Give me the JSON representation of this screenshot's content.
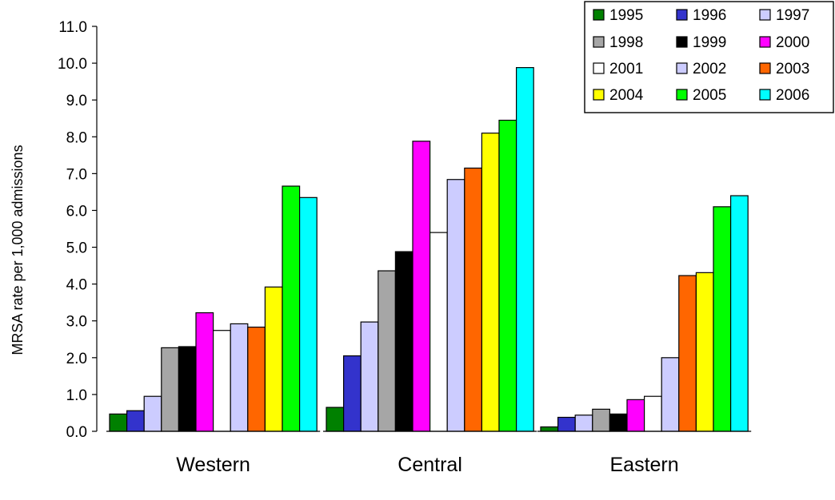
{
  "chart_data": {
    "type": "bar",
    "ylabel": "MRSA rate per 1,000 admissions",
    "ylim": [
      0,
      11
    ],
    "yticks": [
      "0.0",
      "1.0",
      "2.0",
      "3.0",
      "4.0",
      "5.0",
      "6.0",
      "7.0",
      "8.0",
      "9.0",
      "10.0",
      "11.0"
    ],
    "categories": [
      "Western",
      "Central",
      "Eastern"
    ],
    "legend_position": "top-right",
    "series": [
      {
        "name": "1995",
        "color": "#008000",
        "values": [
          0.47,
          0.65,
          0.12
        ]
      },
      {
        "name": "1996",
        "color": "#3333cc",
        "values": [
          0.56,
          2.05,
          0.38
        ]
      },
      {
        "name": "1997",
        "color": "#ccccff",
        "values": [
          0.95,
          2.97,
          0.44
        ]
      },
      {
        "name": "1998",
        "color": "#a6a6a6",
        "values": [
          2.27,
          4.36,
          0.6
        ]
      },
      {
        "name": "1999",
        "color": "#000000",
        "values": [
          2.3,
          4.88,
          0.47
        ]
      },
      {
        "name": "2000",
        "color": "#ff00ff",
        "values": [
          3.22,
          7.88,
          0.86
        ]
      },
      {
        "name": "2001",
        "color": "#ffffff",
        "values": [
          2.74,
          5.4,
          0.95
        ]
      },
      {
        "name": "2002",
        "color": "#ccccff",
        "values": [
          2.92,
          6.84,
          2.0
        ]
      },
      {
        "name": "2003",
        "color": "#ff6600",
        "values": [
          2.83,
          7.15,
          4.23
        ]
      },
      {
        "name": "2004",
        "color": "#ffff00",
        "values": [
          3.92,
          8.1,
          4.31
        ]
      },
      {
        "name": "2005",
        "color": "#00ff00",
        "values": [
          6.66,
          8.45,
          6.1
        ]
      },
      {
        "name": "2006",
        "color": "#00ffff",
        "values": [
          6.35,
          9.88,
          6.4
        ]
      }
    ]
  }
}
